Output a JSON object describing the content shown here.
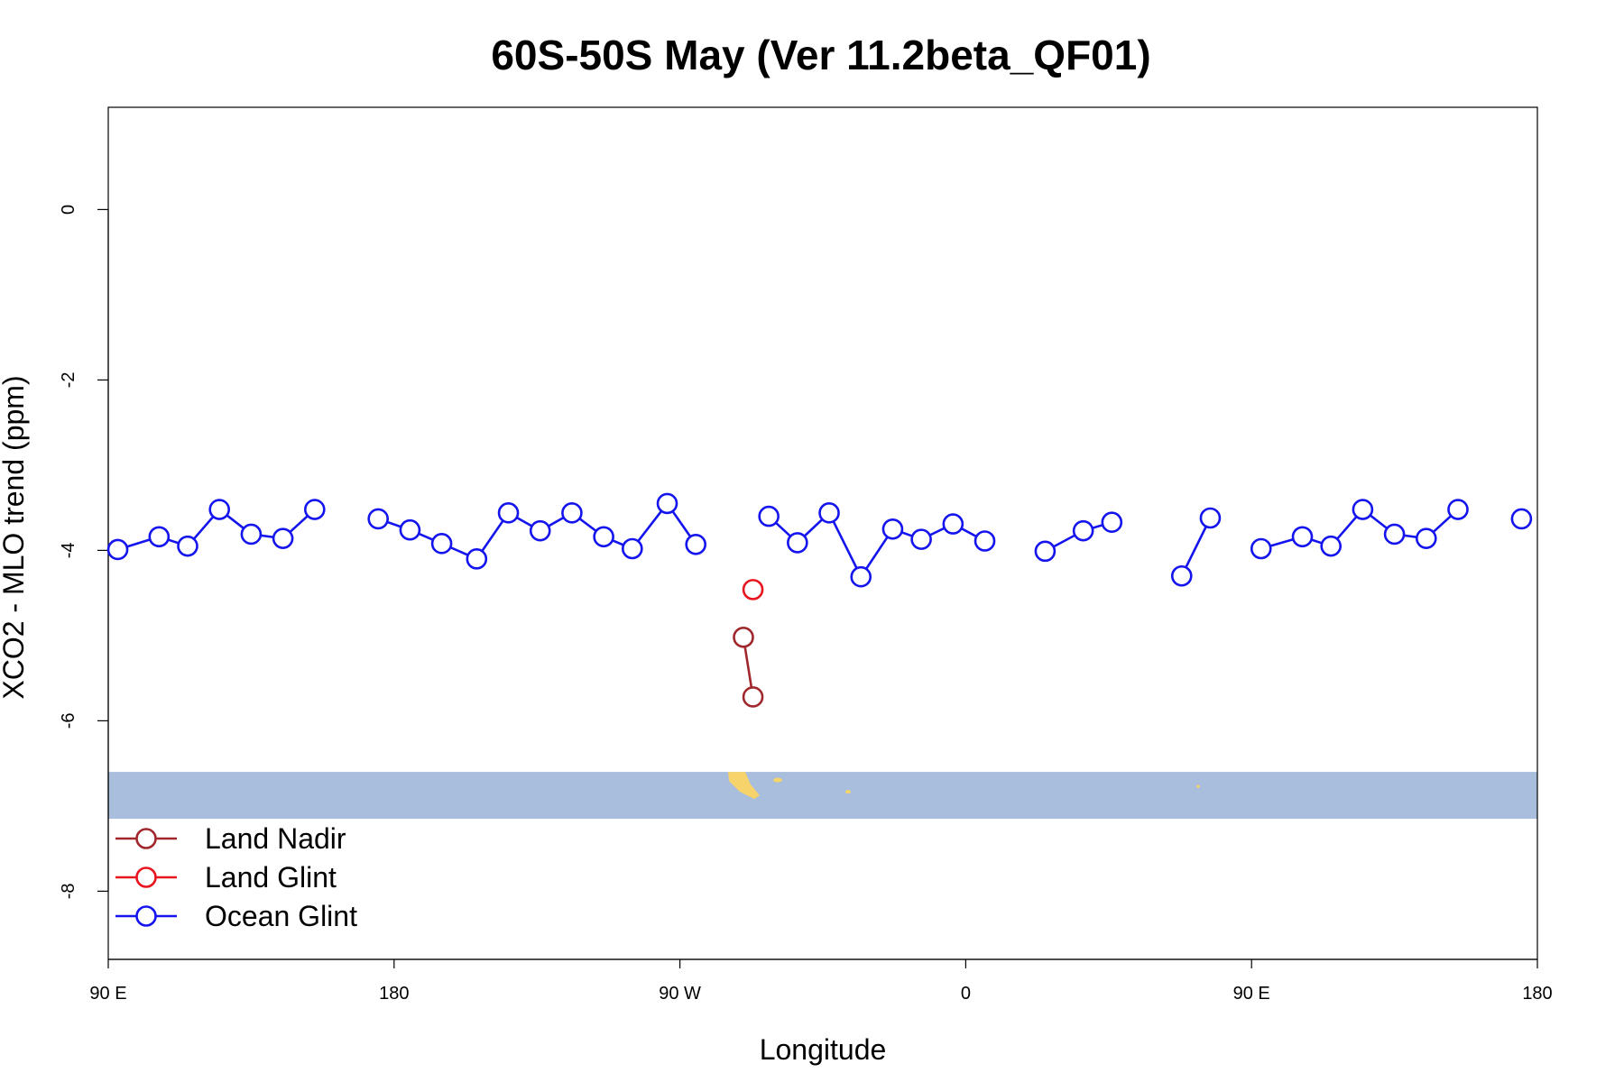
{
  "chart_data": {
    "type": "line",
    "title": "60S-50S May (Ver 11.2beta_QF01)",
    "xlabel": "Longitude",
    "ylabel": "XCO2 - MLO trend (ppm)",
    "xlim": [
      90,
      540
    ],
    "ylim": [
      -8.8,
      1.2
    ],
    "x_ticks": [
      {
        "value": 90,
        "label": "90 E"
      },
      {
        "value": 180,
        "label": "180"
      },
      {
        "value": 270,
        "label": "90 W"
      },
      {
        "value": 360,
        "label": "0"
      },
      {
        "value": 450,
        "label": "90 E"
      },
      {
        "value": 540,
        "label": "180"
      }
    ],
    "y_ticks": [
      {
        "value": 0,
        "label": "0"
      },
      {
        "value": -2,
        "label": "-2"
      },
      {
        "value": -4,
        "label": "-4"
      },
      {
        "value": -6,
        "label": "-6"
      },
      {
        "value": -8,
        "label": "-8"
      }
    ],
    "map_strip": {
      "y_range": [
        -7.15,
        -6.6
      ],
      "ocean_color": "#a8bedc",
      "land_color": "#f6d36b"
    },
    "series": [
      {
        "name": "Land Nadir",
        "color": "#a0282d",
        "segments": [
          [
            [
              290,
              -5.02
            ],
            [
              293,
              -5.72
            ]
          ]
        ]
      },
      {
        "name": "Land Glint",
        "color": "#e8141e",
        "segments": [
          [
            [
              293,
              -4.46
            ]
          ]
        ]
      },
      {
        "name": "Ocean Glint",
        "color": "#1414ee",
        "segments": [
          [
            [
              93,
              -3.99
            ],
            [
              106,
              -3.84
            ],
            [
              115,
              -3.95
            ],
            [
              125,
              -3.52
            ],
            [
              135,
              -3.81
            ],
            [
              145,
              -3.86
            ],
            [
              155,
              -3.52
            ]
          ],
          [
            [
              175,
              -3.63
            ],
            [
              185,
              -3.76
            ],
            [
              195,
              -3.92
            ],
            [
              206,
              -4.1
            ],
            [
              216,
              -3.56
            ],
            [
              226,
              -3.77
            ],
            [
              236,
              -3.56
            ],
            [
              246,
              -3.84
            ],
            [
              255,
              -3.98
            ],
            [
              266,
              -3.45
            ],
            [
              275,
              -3.93
            ]
          ],
          [
            [
              298,
              -3.6
            ],
            [
              307,
              -3.91
            ],
            [
              317,
              -3.56
            ],
            [
              327,
              -4.31
            ],
            [
              337,
              -3.75
            ],
            [
              346,
              -3.87
            ],
            [
              356,
              -3.69
            ],
            [
              366,
              -3.89
            ]
          ],
          [
            [
              385,
              -4.01
            ],
            [
              397,
              -3.77
            ],
            [
              406,
              -3.67
            ]
          ],
          [
            [
              428,
              -4.3
            ],
            [
              437,
              -3.62
            ]
          ],
          [
            [
              453,
              -3.98
            ],
            [
              466,
              -3.84
            ],
            [
              475,
              -3.95
            ],
            [
              485,
              -3.52
            ],
            [
              495,
              -3.81
            ],
            [
              505,
              -3.86
            ],
            [
              515,
              -3.52
            ]
          ],
          [
            [
              535,
              -3.63
            ]
          ]
        ]
      }
    ],
    "legend": {
      "position": "bottom-left",
      "entries": [
        "Land Nadir",
        "Land Glint",
        "Ocean Glint"
      ]
    }
  }
}
